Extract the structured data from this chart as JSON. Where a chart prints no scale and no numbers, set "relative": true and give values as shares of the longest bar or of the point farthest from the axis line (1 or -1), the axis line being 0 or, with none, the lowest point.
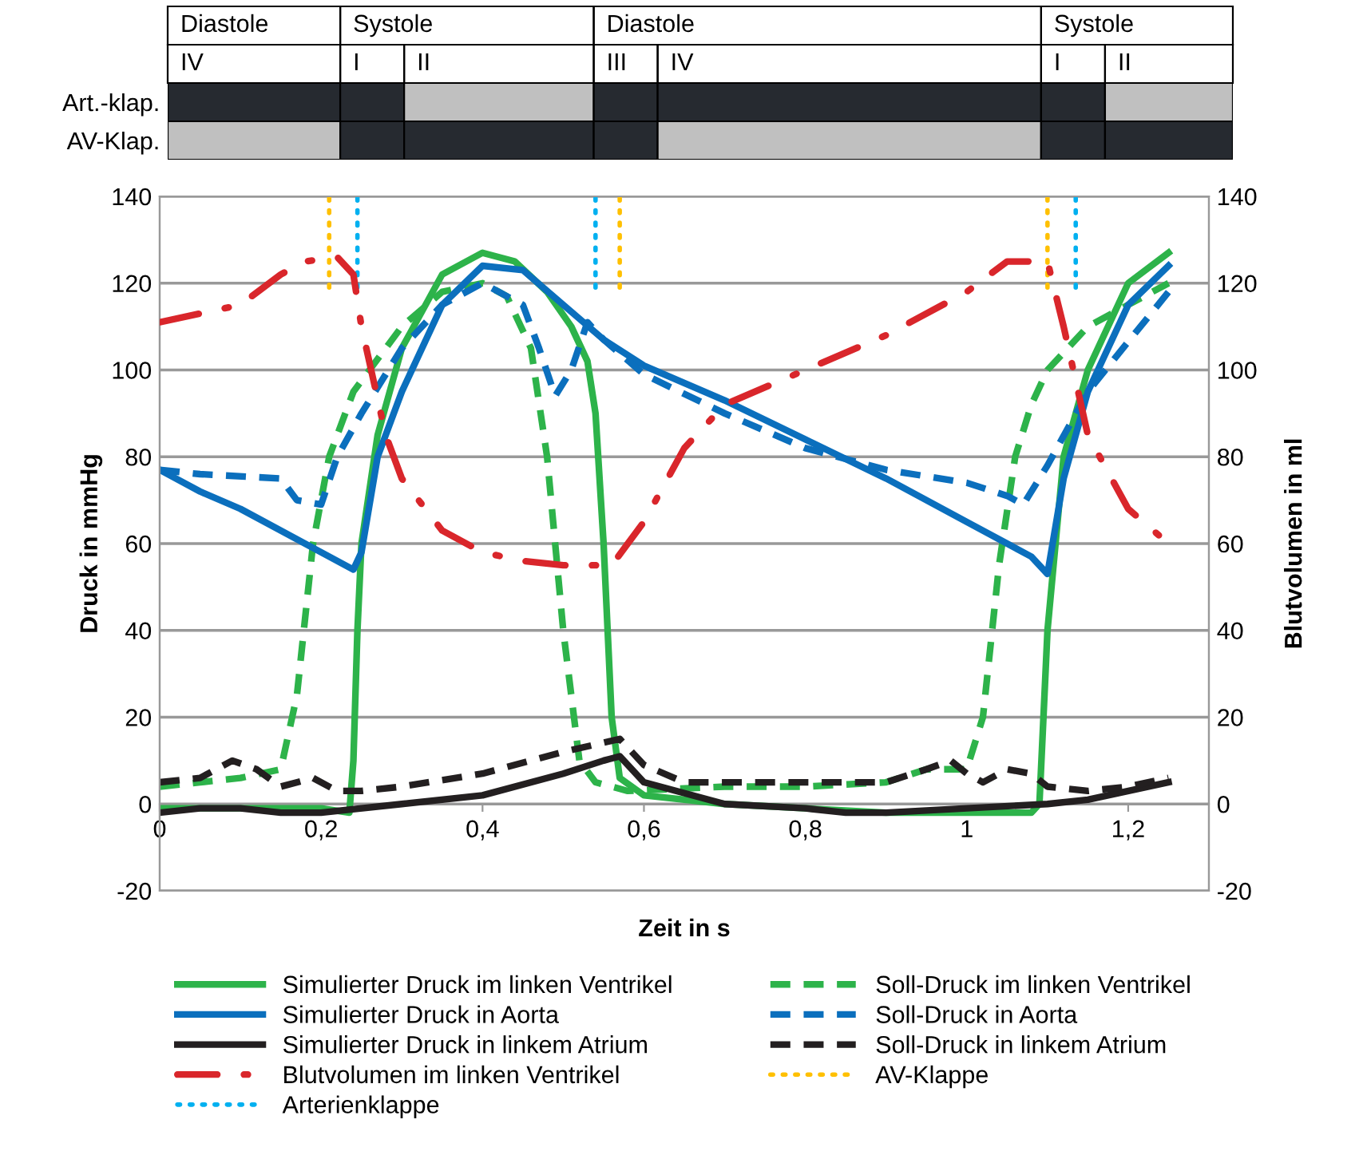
{
  "chart_data": [
    {
      "type": "bar",
      "orientation": "horizontal",
      "stacked": true,
      "relative": true,
      "tick_labels": "y",
      "categories": [
        "Art.-klap.",
        "AV-Klap."
      ],
      "annotations": [
        "Diastole",
        "Systole",
        "Diastole",
        "Systole",
        "IV",
        "I",
        "II",
        "III",
        "IV",
        "I",
        "II"
      ],
      "series": [
        {
          "colors": [
            "#262a30",
            "#c0c0c0"
          ],
          "values": [
            0.162,
            0.162
          ]
        },
        {
          "colors": [
            "#262a30",
            "#262a30"
          ],
          "values": [
            0.06,
            0.06
          ]
        },
        {
          "colors": [
            "#c0c0c0",
            "#262a30"
          ],
          "values": [
            0.178,
            0.178
          ]
        },
        {
          "colors": [
            "#262a30",
            "#262a30"
          ],
          "values": [
            0.06,
            0.06
          ]
        },
        {
          "colors": [
            "#262a30",
            "#c0c0c0"
          ],
          "values": [
            0.36,
            0.36
          ]
        },
        {
          "colors": [
            "#262a30",
            "#262a30"
          ],
          "values": [
            0.06,
            0.06
          ]
        },
        {
          "colors": [
            "#c0c0c0",
            "#262a30"
          ],
          "values": [
            0.12,
            0.12
          ]
        }
      ]
    },
    {
      "type": "line",
      "xlabel": "Zeit in s",
      "ylabel": "Druck in mmHg",
      "y2label": "Blutvolumen in ml",
      "xlim": [
        0,
        1.3
      ],
      "xticks": [
        0,
        {
          "value": 0.2,
          "label": "0,2"
        },
        {
          "value": 0.4,
          "label": "0,4"
        },
        {
          "value": 0.6,
          "label": "0,6"
        },
        {
          "value": 0.8,
          "label": "0,8"
        },
        1,
        {
          "value": 1.2,
          "label": "1,2"
        }
      ],
      "ylim": [
        -20,
        140
      ],
      "yticks": [
        -20,
        0,
        20,
        40,
        60,
        80,
        100,
        120,
        140
      ],
      "y2lim": [
        -20,
        140
      ],
      "y2ticks": [
        -20,
        0,
        20,
        40,
        60,
        80,
        100,
        120,
        140
      ],
      "grid": "y",
      "legend": "bottom",
      "series": [
        {
          "name": "Simulierter Druck im linken Ventrikel",
          "color": "#2db34a",
          "line_style": "solid",
          "x": [
            0,
            0.1,
            0.2,
            0.235,
            0.24,
            0.245,
            0.25,
            0.27,
            0.3,
            0.35,
            0.4,
            0.44,
            0.48,
            0.51,
            0.53,
            0.54,
            0.55,
            0.56,
            0.57,
            0.6,
            0.7,
            0.8,
            0.9,
            1.0,
            1.08,
            1.09,
            1.1,
            1.12,
            1.15,
            1.2,
            1.25
          ],
          "values": [
            -1,
            -1,
            -1,
            -2,
            10,
            40,
            60,
            85,
            105,
            122,
            127,
            125,
            118,
            110,
            102,
            90,
            60,
            20,
            6,
            2,
            0,
            -1,
            -2,
            -2,
            -2,
            0,
            40,
            80,
            100,
            120,
            127
          ]
        },
        {
          "name": "Soll-Druck im linken Ventrikel",
          "color": "#2db34a",
          "line_style": "dashed",
          "x": [
            0,
            0.05,
            0.1,
            0.15,
            0.17,
            0.19,
            0.21,
            0.24,
            0.3,
            0.35,
            0.4,
            0.43,
            0.46,
            0.48,
            0.5,
            0.52,
            0.54,
            0.58,
            0.7,
            0.8,
            0.9,
            0.95,
            1.0,
            1.02,
            1.04,
            1.06,
            1.08,
            1.1,
            1.15,
            1.2,
            1.25
          ],
          "values": [
            4,
            5,
            6,
            8,
            25,
            60,
            80,
            95,
            110,
            118,
            120,
            117,
            105,
            80,
            40,
            10,
            5,
            3,
            4,
            4,
            5,
            8,
            8,
            20,
            55,
            80,
            92,
            100,
            110,
            115,
            120
          ]
        },
        {
          "name": "Simulierter Druck in Aorta",
          "color": "#0b6fbd",
          "line_style": "solid",
          "x": [
            0,
            0.05,
            0.1,
            0.2,
            0.24,
            0.25,
            0.27,
            0.3,
            0.35,
            0.4,
            0.45,
            0.5,
            0.55,
            0.6,
            0.7,
            0.8,
            0.9,
            1.0,
            1.08,
            1.1,
            1.12,
            1.15,
            1.2,
            1.25
          ],
          "values": [
            77,
            72,
            68,
            58,
            54,
            58,
            80,
            95,
            115,
            124,
            123,
            115,
            107,
            101,
            93,
            84,
            75,
            65,
            57,
            53,
            75,
            95,
            115,
            124
          ]
        },
        {
          "name": "Soll-Druck in Aorta",
          "color": "#0b6fbd",
          "line_style": "dashed",
          "x": [
            0,
            0.05,
            0.15,
            0.17,
            0.2,
            0.22,
            0.25,
            0.3,
            0.35,
            0.4,
            0.45,
            0.47,
            0.49,
            0.51,
            0.53,
            0.55,
            0.6,
            0.7,
            0.8,
            0.9,
            1.0,
            1.05,
            1.07,
            1.1,
            1.15,
            1.25
          ],
          "values": [
            77,
            76,
            75,
            70,
            69,
            80,
            90,
            105,
            115,
            120,
            115,
            105,
            94,
            100,
            111,
            107,
            99,
            90,
            82,
            77,
            74,
            71,
            69,
            78,
            95,
            118
          ]
        },
        {
          "name": "Simulierter Druck in linkem Atrium",
          "color": "#231f20",
          "line_style": "solid",
          "x": [
            0,
            0.05,
            0.1,
            0.15,
            0.2,
            0.3,
            0.4,
            0.5,
            0.55,
            0.57,
            0.6,
            0.7,
            0.8,
            0.85,
            0.9,
            1.0,
            1.1,
            1.15,
            1.25
          ],
          "values": [
            -2,
            -1,
            -1,
            -2,
            -2,
            0,
            2,
            7,
            10,
            11,
            5,
            0,
            -1,
            -2,
            -2,
            -1,
            0,
            1,
            5
          ]
        },
        {
          "name": "Soll-Druck in linkem Atrium",
          "color": "#231f20",
          "line_style": "dashed",
          "x": [
            0,
            0.05,
            0.09,
            0.12,
            0.15,
            0.19,
            0.22,
            0.25,
            0.3,
            0.4,
            0.5,
            0.57,
            0.6,
            0.65,
            0.8,
            0.9,
            0.95,
            0.98,
            1.0,
            1.02,
            1.05,
            1.08,
            1.1,
            1.15,
            1.2,
            1.25
          ],
          "values": [
            5,
            6,
            10,
            8,
            4,
            6,
            3,
            3,
            4,
            7,
            12,
            15,
            9,
            5,
            5,
            5,
            8,
            10,
            7,
            5,
            8,
            7,
            4,
            3,
            4,
            6
          ]
        },
        {
          "name": "Blutvolumen im linken Ventrikel",
          "color": "#d9262b",
          "line_style": "dashdot",
          "axis": "y2",
          "x": [
            0,
            0.1,
            0.15,
            0.18,
            0.22,
            0.24,
            0.25,
            0.28,
            0.3,
            0.35,
            0.4,
            0.45,
            0.5,
            0.56,
            0.6,
            0.65,
            0.7,
            0.8,
            0.9,
            1.0,
            1.05,
            1.1,
            1.12,
            1.15,
            1.2,
            1.25
          ],
          "values": [
            111,
            115,
            122,
            125,
            126,
            122,
            110,
            85,
            75,
            63,
            58,
            56,
            55,
            55,
            65,
            82,
            92,
            100,
            108,
            118,
            125,
            125,
            110,
            85,
            68,
            60
          ]
        },
        {
          "name": "AV-Klappe",
          "color": "#ffc000",
          "line_style": "dotted",
          "x": [
            0.21,
            0.21,
            null,
            0.57,
            0.57,
            null,
            1.1,
            1.1
          ],
          "values": [
            119,
            140,
            null,
            119,
            140,
            null,
            119,
            140
          ]
        },
        {
          "name": "Arterienklappe",
          "color": "#00b0f0",
          "line_style": "dotted",
          "x": [
            0.245,
            0.245,
            null,
            0.54,
            0.54,
            null,
            1.135,
            1.135
          ],
          "values": [
            119,
            140,
            null,
            119,
            140,
            null,
            119,
            140
          ]
        }
      ]
    }
  ]
}
